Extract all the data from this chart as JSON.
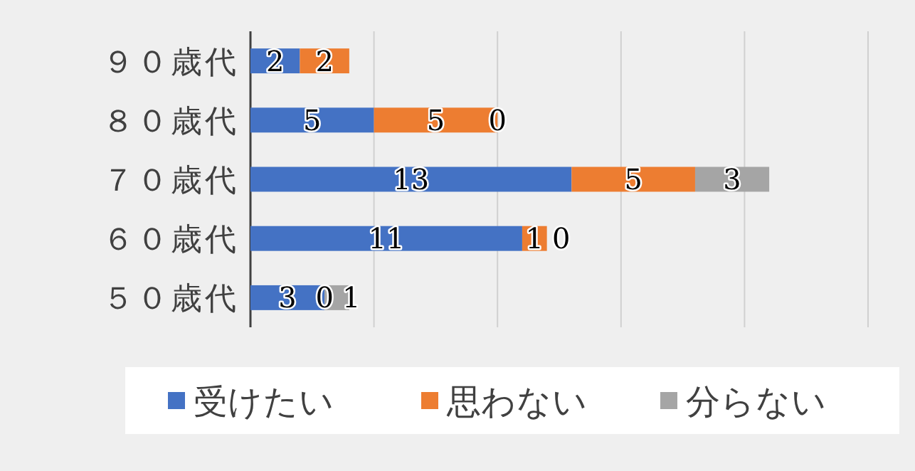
{
  "chart_data": {
    "type": "bar",
    "orientation": "horizontal",
    "stacked": true,
    "data_labels": true,
    "grid": "x",
    "legend": "bottom",
    "tick_labels": "y",
    "categories": [
      "９０歳代",
      "８０歳代",
      "７０歳代",
      "６０歳代",
      "５０歳代"
    ],
    "xlim": [
      0,
      25
    ],
    "xticks": [
      {
        "value": 0,
        "label": null
      },
      {
        "value": 5,
        "label": null
      },
      {
        "value": 10,
        "label": null
      },
      {
        "value": 15,
        "label": null
      },
      {
        "value": 20,
        "label": null
      },
      {
        "value": 25,
        "label": null
      }
    ],
    "series": [
      {
        "name": "受けたい",
        "color": "#4472c4",
        "values": [
          2,
          5,
          13,
          11,
          3
        ]
      },
      {
        "name": "思わない",
        "color": "#ed7d31",
        "values": [
          2,
          5,
          5,
          1,
          0
        ]
      },
      {
        "name": "分らない",
        "color": "#a5a5a5",
        "values": [
          null,
          0,
          3,
          0,
          1
        ]
      }
    ]
  }
}
